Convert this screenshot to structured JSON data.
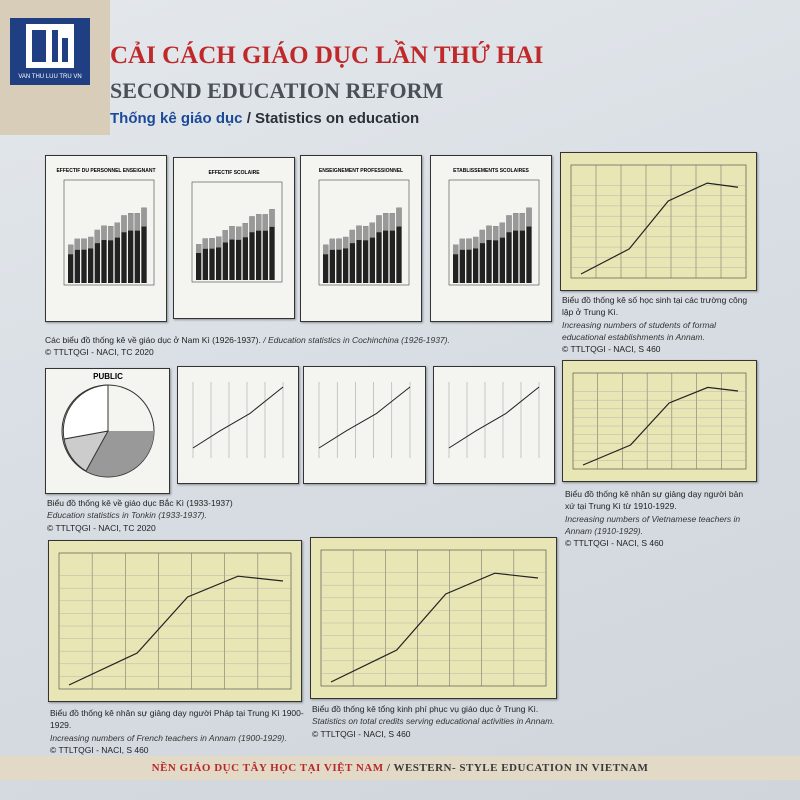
{
  "header": {
    "logo_text": "VAN THU LUU TRU VN",
    "title_vi": "CẢI CÁCH GIÁO DỤC LẦN THỨ HAI",
    "title_en": "SECOND EDUCATION REFORM",
    "subtitle_vi": "Thống kê giáo dục",
    "subtitle_en": "/ Statistics on education"
  },
  "figures": [
    {
      "title": "EFFECTIF DU PERSONNEL ENSEIGNANT"
    },
    {
      "title": "EFFECTIF SCOLAIRE"
    },
    {
      "title": "ENSEIGNEMENT PROFESSIONNEL"
    },
    {
      "title": "ETABLISSEMENTS SCOLAIRES"
    },
    {
      "title": "PUBLIC"
    }
  ],
  "captions": [
    {
      "vi": "Các biểu đồ thống kê về giáo dục ở Nam Kì (1926-1937).",
      "en": "/ Education statistics in Cochinchina (1926-1937).",
      "source": "© TTLTQGI - NACI, TC 2020"
    },
    {
      "vi": "Biểu đồ thống kê số học sinh tại các trường công lập ở Trung Kì.",
      "en": "Increasing numbers of students of formal educational establishments in Annam.",
      "source": "© TTLTQGI - NACI, S 460"
    },
    {
      "vi": "Biểu đồ thống kê về giáo dục Bắc Kì (1933-1937)",
      "en": "Education statistics in Tonkin (1933-1937).",
      "source": "© TTLTQGI - NACI, TC 2020"
    },
    {
      "vi": "Biểu đồ thống kê nhân sự giảng dạy người bản xứ tại Trung Kì từ 1910-1929.",
      "en": "Increasing numbers of Vietnamese teachers in Annam (1910-1929).",
      "source": "© TTLTQGI - NACI, S 460"
    },
    {
      "vi": "Biểu đồ thống kê nhân sự giảng dạy người Pháp tại Trung Kì 1900-1929.",
      "en": "Increasing numbers of French teachers in Annam (1900-1929).",
      "source": "© TTLTQGI - NACI, S 460"
    },
    {
      "vi": "Biểu đồ thống kê tổng kinh phí phục vụ giáo dục ở Trung Kì.",
      "en": "Statistics on total credits serving educational activities in Annam.",
      "source": "© TTLTQGI - NACI, S 460"
    }
  ],
  "footer": {
    "vi": "NỀN GIÁO DỤC TÂY HỌC TẠI VIỆT NAM",
    "en": "/ WESTERN- STYLE EDUCATION IN VIETNAM"
  }
}
